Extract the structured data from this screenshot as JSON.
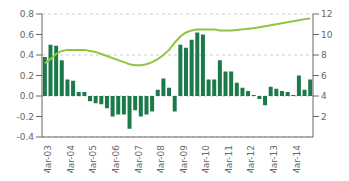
{
  "chart_data": {
    "type": "bar",
    "categories": [
      "Mar-03",
      null,
      null,
      null,
      "Mar-04",
      null,
      null,
      null,
      "Mar-05",
      null,
      null,
      null,
      "Mar-06",
      null,
      null,
      null,
      "Mar-07",
      null,
      null,
      null,
      "Mar-08",
      null,
      null,
      null,
      "Mar-09",
      null,
      null,
      null,
      "Mar-10",
      null,
      null,
      null,
      "Mar-11",
      null,
      null,
      null,
      "Mar-12",
      null,
      null,
      null,
      "Mar-13",
      null,
      null,
      null,
      "Mar-14",
      null,
      null,
      null
    ],
    "series": [
      {
        "type": "bar",
        "color": "#1a7a4a",
        "values": [
          0.38,
          0.5,
          0.49,
          0.35,
          0.16,
          0.15,
          0.04,
          0.04,
          -0.05,
          -0.07,
          -0.08,
          -0.12,
          -0.2,
          -0.18,
          -0.18,
          -0.32,
          -0.14,
          -0.2,
          -0.18,
          -0.15,
          0.06,
          0.17,
          0.08,
          -0.15,
          0.5,
          0.47,
          0.55,
          0.62,
          0.6,
          0.16,
          0.16,
          0.35,
          0.24,
          0.24,
          0.13,
          0.08,
          0.05,
          0.01,
          -0.03,
          -0.09,
          0.09,
          0.07,
          0.05,
          0.04,
          0.01,
          0.2,
          0.06,
          0.16
        ]
      },
      {
        "type": "line",
        "color": "#8dc63f",
        "axis": "y2",
        "values": [
          7.2,
          7.6,
          8.1,
          8.4,
          8.5,
          8.5,
          8.5,
          8.5,
          8.4,
          8.3,
          8.1,
          7.9,
          7.7,
          7.5,
          7.3,
          7.1,
          7.0,
          7.0,
          7.1,
          7.3,
          7.6,
          8.0,
          8.5,
          9.2,
          9.8,
          10.2,
          10.4,
          10.5,
          10.5,
          10.5,
          10.5,
          10.4,
          10.4,
          10.4,
          10.45,
          10.5,
          10.55,
          10.6,
          10.7,
          10.8,
          10.9,
          11.0,
          11.1,
          11.2,
          11.3,
          11.4,
          11.5,
          11.55
        ]
      }
    ],
    "ylim": [
      -0.4,
      0.8
    ],
    "yticks": [
      -0.4,
      -0.2,
      {
        "value": 0,
        "label": "0.0"
      },
      0.2,
      0.4,
      0.6,
      0.8
    ],
    "y2lim": [
      0,
      12
    ],
    "y2ticks": [
      2,
      4,
      6,
      8,
      10,
      12
    ],
    "grid": true
  }
}
